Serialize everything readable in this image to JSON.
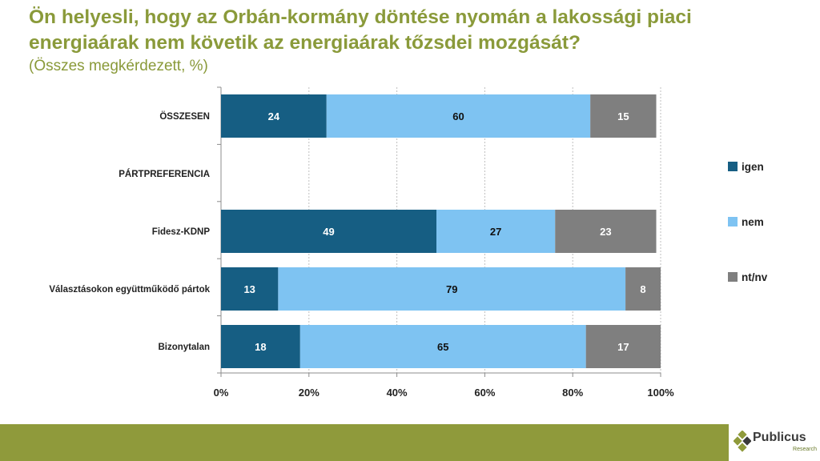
{
  "title": "Ön helyesli, hogy az Orbán-kormány döntése nyomán a lakossági piaci energiaárak nem követik az energiaárak tőzsdei mozgását?",
  "subtitle": "(Összes megkérdezett, %)",
  "logo": {
    "name": "Publicus",
    "sub": "Research"
  },
  "colors": {
    "igen": "#165e83",
    "nem": "#7ec3f2",
    "ntnv": "#7f7f7f",
    "title": "#8a9a3a",
    "footer": "#8f9a3b"
  },
  "chart_data": {
    "type": "bar",
    "orientation": "horizontal",
    "stacked": true,
    "categories": [
      "ÖSSZESEN",
      "PÁRTPREFERENCIA",
      "Fidesz-KDNP",
      "Választásokon együttműködő pártok",
      "Bizonytalan"
    ],
    "series": [
      {
        "name": "igen",
        "values": [
          24,
          null,
          49,
          13,
          18
        ]
      },
      {
        "name": "nem",
        "values": [
          60,
          null,
          27,
          79,
          65
        ]
      },
      {
        "name": "nt/nv",
        "values": [
          15,
          null,
          23,
          8,
          17
        ]
      }
    ],
    "xlim": [
      0,
      100
    ],
    "xticks": [
      "0%",
      "20%",
      "40%",
      "60%",
      "80%",
      "100%"
    ],
    "grid": true,
    "legend_position": "right"
  }
}
